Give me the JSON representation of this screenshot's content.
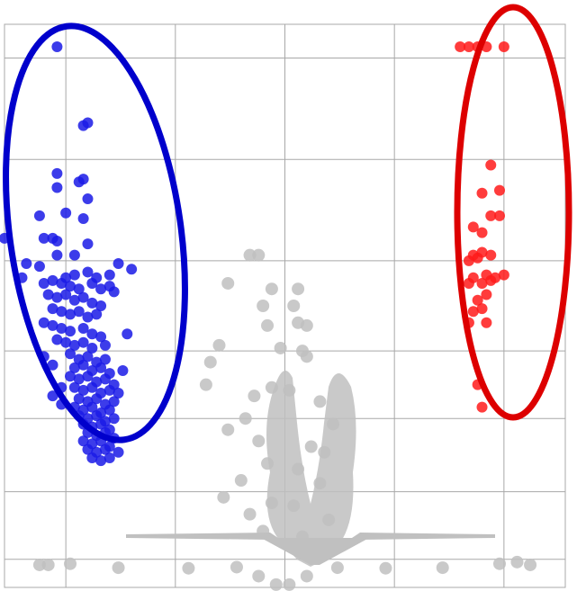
{
  "chart_data": {
    "type": "scatter",
    "title": "",
    "xlabel": "",
    "ylabel": "",
    "grid": true,
    "xlim": [
      -6.4,
      6.4
    ],
    "ylim": [
      0,
      10
    ],
    "x_gridlines": [
      -5,
      -2.5,
      0,
      2.5,
      5
    ],
    "y_gridlines": [
      0.5,
      1.7,
      3,
      4.2,
      5.8,
      7.6,
      9.4
    ],
    "colors": {
      "down": "#1a1ae6",
      "up": "#ff1a1a",
      "ns": "#c0c0c0",
      "down_ellipse": "#0000cc",
      "up_ellipse": "#dd0000",
      "grid": "#a8a8a8"
    },
    "series": [
      {
        "group": "down",
        "color": "#1a1ae6",
        "points": [
          [
            -5.2,
            9.6
          ],
          [
            -4.6,
            8.2
          ],
          [
            -4.5,
            8.25
          ],
          [
            -5.2,
            7.35
          ],
          [
            -4.6,
            7.25
          ],
          [
            -4.7,
            7.2
          ],
          [
            -5.2,
            7.1
          ],
          [
            -4.5,
            6.9
          ],
          [
            -5.6,
            6.6
          ],
          [
            -5.0,
            6.65
          ],
          [
            -4.6,
            6.55
          ],
          [
            -6.4,
            6.2
          ],
          [
            -5.5,
            6.2
          ],
          [
            -5.3,
            6.2
          ],
          [
            -5.2,
            6.15
          ],
          [
            -4.5,
            6.1
          ],
          [
            -5.2,
            5.9
          ],
          [
            -4.8,
            5.9
          ],
          [
            -5.9,
            5.75
          ],
          [
            -5.6,
            5.7
          ],
          [
            -3.8,
            5.75
          ],
          [
            -3.5,
            5.65
          ],
          [
            -4.0,
            5.55
          ],
          [
            -6.0,
            5.5
          ],
          [
            -5.0,
            5.5
          ],
          [
            -4.8,
            5.55
          ],
          [
            -4.5,
            5.6
          ],
          [
            -4.3,
            5.5
          ],
          [
            -5.5,
            5.4
          ],
          [
            -5.3,
            5.45
          ],
          [
            -5.1,
            5.4
          ],
          [
            -4.9,
            5.35
          ],
          [
            -4.7,
            5.3
          ],
          [
            -4.4,
            5.4
          ],
          [
            -4.2,
            5.3
          ],
          [
            -3.9,
            5.25
          ],
          [
            -4.0,
            5.35
          ],
          [
            -5.4,
            5.2
          ],
          [
            -5.2,
            5.15
          ],
          [
            -5.0,
            5.2
          ],
          [
            -4.8,
            5.1
          ],
          [
            -4.6,
            5.15
          ],
          [
            -4.4,
            5.05
          ],
          [
            -4.2,
            5.0
          ],
          [
            -5.3,
            4.95
          ],
          [
            -5.1,
            4.9
          ],
          [
            -4.9,
            4.85
          ],
          [
            -4.7,
            4.9
          ],
          [
            -4.5,
            4.8
          ],
          [
            -4.3,
            4.85
          ],
          [
            -5.5,
            4.7
          ],
          [
            -5.3,
            4.65
          ],
          [
            -5.1,
            4.6
          ],
          [
            -4.9,
            4.55
          ],
          [
            -4.6,
            4.6
          ],
          [
            -4.4,
            4.5
          ],
          [
            -4.2,
            4.45
          ],
          [
            -3.6,
            4.5
          ],
          [
            -5.2,
            4.4
          ],
          [
            -5.0,
            4.35
          ],
          [
            -4.8,
            4.3
          ],
          [
            -4.6,
            4.35
          ],
          [
            -4.4,
            4.25
          ],
          [
            -4.1,
            4.3
          ],
          [
            -5.5,
            4.1
          ],
          [
            -4.9,
            4.15
          ],
          [
            -4.7,
            4.05
          ],
          [
            -4.5,
            4.1
          ],
          [
            -4.3,
            4.0
          ],
          [
            -4.1,
            4.05
          ],
          [
            -5.3,
            3.95
          ],
          [
            -4.8,
            3.9
          ],
          [
            -4.6,
            3.95
          ],
          [
            -4.4,
            3.85
          ],
          [
            -4.2,
            3.9
          ],
          [
            -4.0,
            3.8
          ],
          [
            -3.7,
            3.85
          ],
          [
            -4.9,
            3.75
          ],
          [
            -4.7,
            3.7
          ],
          [
            -4.5,
            3.75
          ],
          [
            -4.3,
            3.65
          ],
          [
            -4.1,
            3.7
          ],
          [
            -3.9,
            3.6
          ],
          [
            -5.1,
            3.55
          ],
          [
            -4.8,
            3.55
          ],
          [
            -4.6,
            3.5
          ],
          [
            -4.4,
            3.55
          ],
          [
            -4.2,
            3.45
          ],
          [
            -4.0,
            3.5
          ],
          [
            -3.8,
            3.45
          ],
          [
            -5.3,
            3.4
          ],
          [
            -4.7,
            3.35
          ],
          [
            -4.5,
            3.3
          ],
          [
            -4.3,
            3.35
          ],
          [
            -4.1,
            3.25
          ],
          [
            -3.9,
            3.3
          ],
          [
            -5.1,
            3.25
          ],
          [
            -4.8,
            3.2
          ],
          [
            -4.6,
            3.15
          ],
          [
            -4.4,
            3.2
          ],
          [
            -4.2,
            3.1
          ],
          [
            -4.0,
            3.15
          ],
          [
            -4.7,
            3.05
          ],
          [
            -4.5,
            3.0
          ],
          [
            -4.3,
            3.05
          ],
          [
            -4.1,
            2.95
          ],
          [
            -3.9,
            3.0
          ],
          [
            -4.6,
            2.9
          ],
          [
            -4.4,
            2.85
          ],
          [
            -4.2,
            2.9
          ],
          [
            -4.0,
            2.8
          ],
          [
            -4.5,
            2.75
          ],
          [
            -4.3,
            2.7
          ],
          [
            -4.1,
            2.75
          ],
          [
            -3.9,
            2.65
          ],
          [
            -4.6,
            2.6
          ],
          [
            -4.4,
            2.55
          ],
          [
            -4.2,
            2.6
          ],
          [
            -4.0,
            2.5
          ],
          [
            -4.5,
            2.45
          ],
          [
            -4.3,
            2.4
          ],
          [
            -4.1,
            2.45
          ],
          [
            -3.8,
            2.4
          ],
          [
            -4.4,
            2.3
          ],
          [
            -4.2,
            2.25
          ],
          [
            -4.0,
            2.3
          ]
        ]
      },
      {
        "group": "up",
        "color": "#ff1a1a",
        "points": [
          [
            4.0,
            9.6
          ],
          [
            4.2,
            9.6
          ],
          [
            4.4,
            9.6
          ],
          [
            4.6,
            9.6
          ],
          [
            5.0,
            9.6
          ],
          [
            4.7,
            7.5
          ],
          [
            4.5,
            7.0
          ],
          [
            4.9,
            7.05
          ],
          [
            4.7,
            6.6
          ],
          [
            4.9,
            6.6
          ],
          [
            4.3,
            6.4
          ],
          [
            4.5,
            6.3
          ],
          [
            4.3,
            5.9
          ],
          [
            4.5,
            5.95
          ],
          [
            4.7,
            5.9
          ],
          [
            4.2,
            5.8
          ],
          [
            4.4,
            5.85
          ],
          [
            4.3,
            5.5
          ],
          [
            4.6,
            5.55
          ],
          [
            4.8,
            5.5
          ],
          [
            5.0,
            5.55
          ],
          [
            4.2,
            5.4
          ],
          [
            4.5,
            5.4
          ],
          [
            4.7,
            5.45
          ],
          [
            4.6,
            5.2
          ],
          [
            4.4,
            5.1
          ],
          [
            4.3,
            4.9
          ],
          [
            4.5,
            4.95
          ],
          [
            4.2,
            4.7
          ],
          [
            4.6,
            4.7
          ],
          [
            4.4,
            3.6
          ],
          [
            4.5,
            3.2
          ]
        ]
      },
      {
        "group": "ns",
        "color": "#c0c0c0",
        "points": [
          [
            -0.8,
            5.9
          ],
          [
            -0.6,
            5.9
          ],
          [
            -1.3,
            5.4
          ],
          [
            -0.3,
            5.3
          ],
          [
            0.3,
            5.3
          ],
          [
            -0.5,
            5.0
          ],
          [
            0.2,
            5.0
          ],
          [
            -0.4,
            4.65
          ],
          [
            0.3,
            4.7
          ],
          [
            0.5,
            4.65
          ],
          [
            -1.5,
            4.3
          ],
          [
            -1.7,
            4.0
          ],
          [
            -0.1,
            4.25
          ],
          [
            0.4,
            4.2
          ],
          [
            0.5,
            4.1
          ],
          [
            -1.8,
            3.6
          ],
          [
            -0.3,
            3.55
          ],
          [
            0.1,
            3.5
          ],
          [
            -0.7,
            3.4
          ],
          [
            0.8,
            3.3
          ],
          [
            1.1,
            2.9
          ],
          [
            -0.9,
            3.0
          ],
          [
            -1.3,
            2.8
          ],
          [
            -0.6,
            2.6
          ],
          [
            0.6,
            2.5
          ],
          [
            0.9,
            2.4
          ],
          [
            -0.4,
            2.2
          ],
          [
            0.3,
            2.1
          ],
          [
            -1.0,
            1.9
          ],
          [
            0.8,
            1.85
          ],
          [
            -1.4,
            1.6
          ],
          [
            -0.3,
            1.5
          ],
          [
            0.2,
            1.45
          ],
          [
            -0.8,
            1.3
          ],
          [
            1.0,
            1.2
          ],
          [
            -0.5,
            1.0
          ],
          [
            0.4,
            0.9
          ],
          [
            -5.6,
            0.4
          ],
          [
            -5.4,
            0.4
          ],
          [
            -4.9,
            0.42
          ],
          [
            4.9,
            0.42
          ],
          [
            5.3,
            0.45
          ],
          [
            5.6,
            0.4
          ],
          [
            -3.8,
            0.35
          ],
          [
            -2.2,
            0.34
          ],
          [
            -1.1,
            0.36
          ],
          [
            1.2,
            0.35
          ],
          [
            2.3,
            0.34
          ],
          [
            3.6,
            0.35
          ],
          [
            -0.6,
            0.2
          ],
          [
            0.5,
            0.2
          ],
          [
            -0.2,
            0.05
          ],
          [
            0.1,
            0.05
          ]
        ]
      }
    ]
  }
}
